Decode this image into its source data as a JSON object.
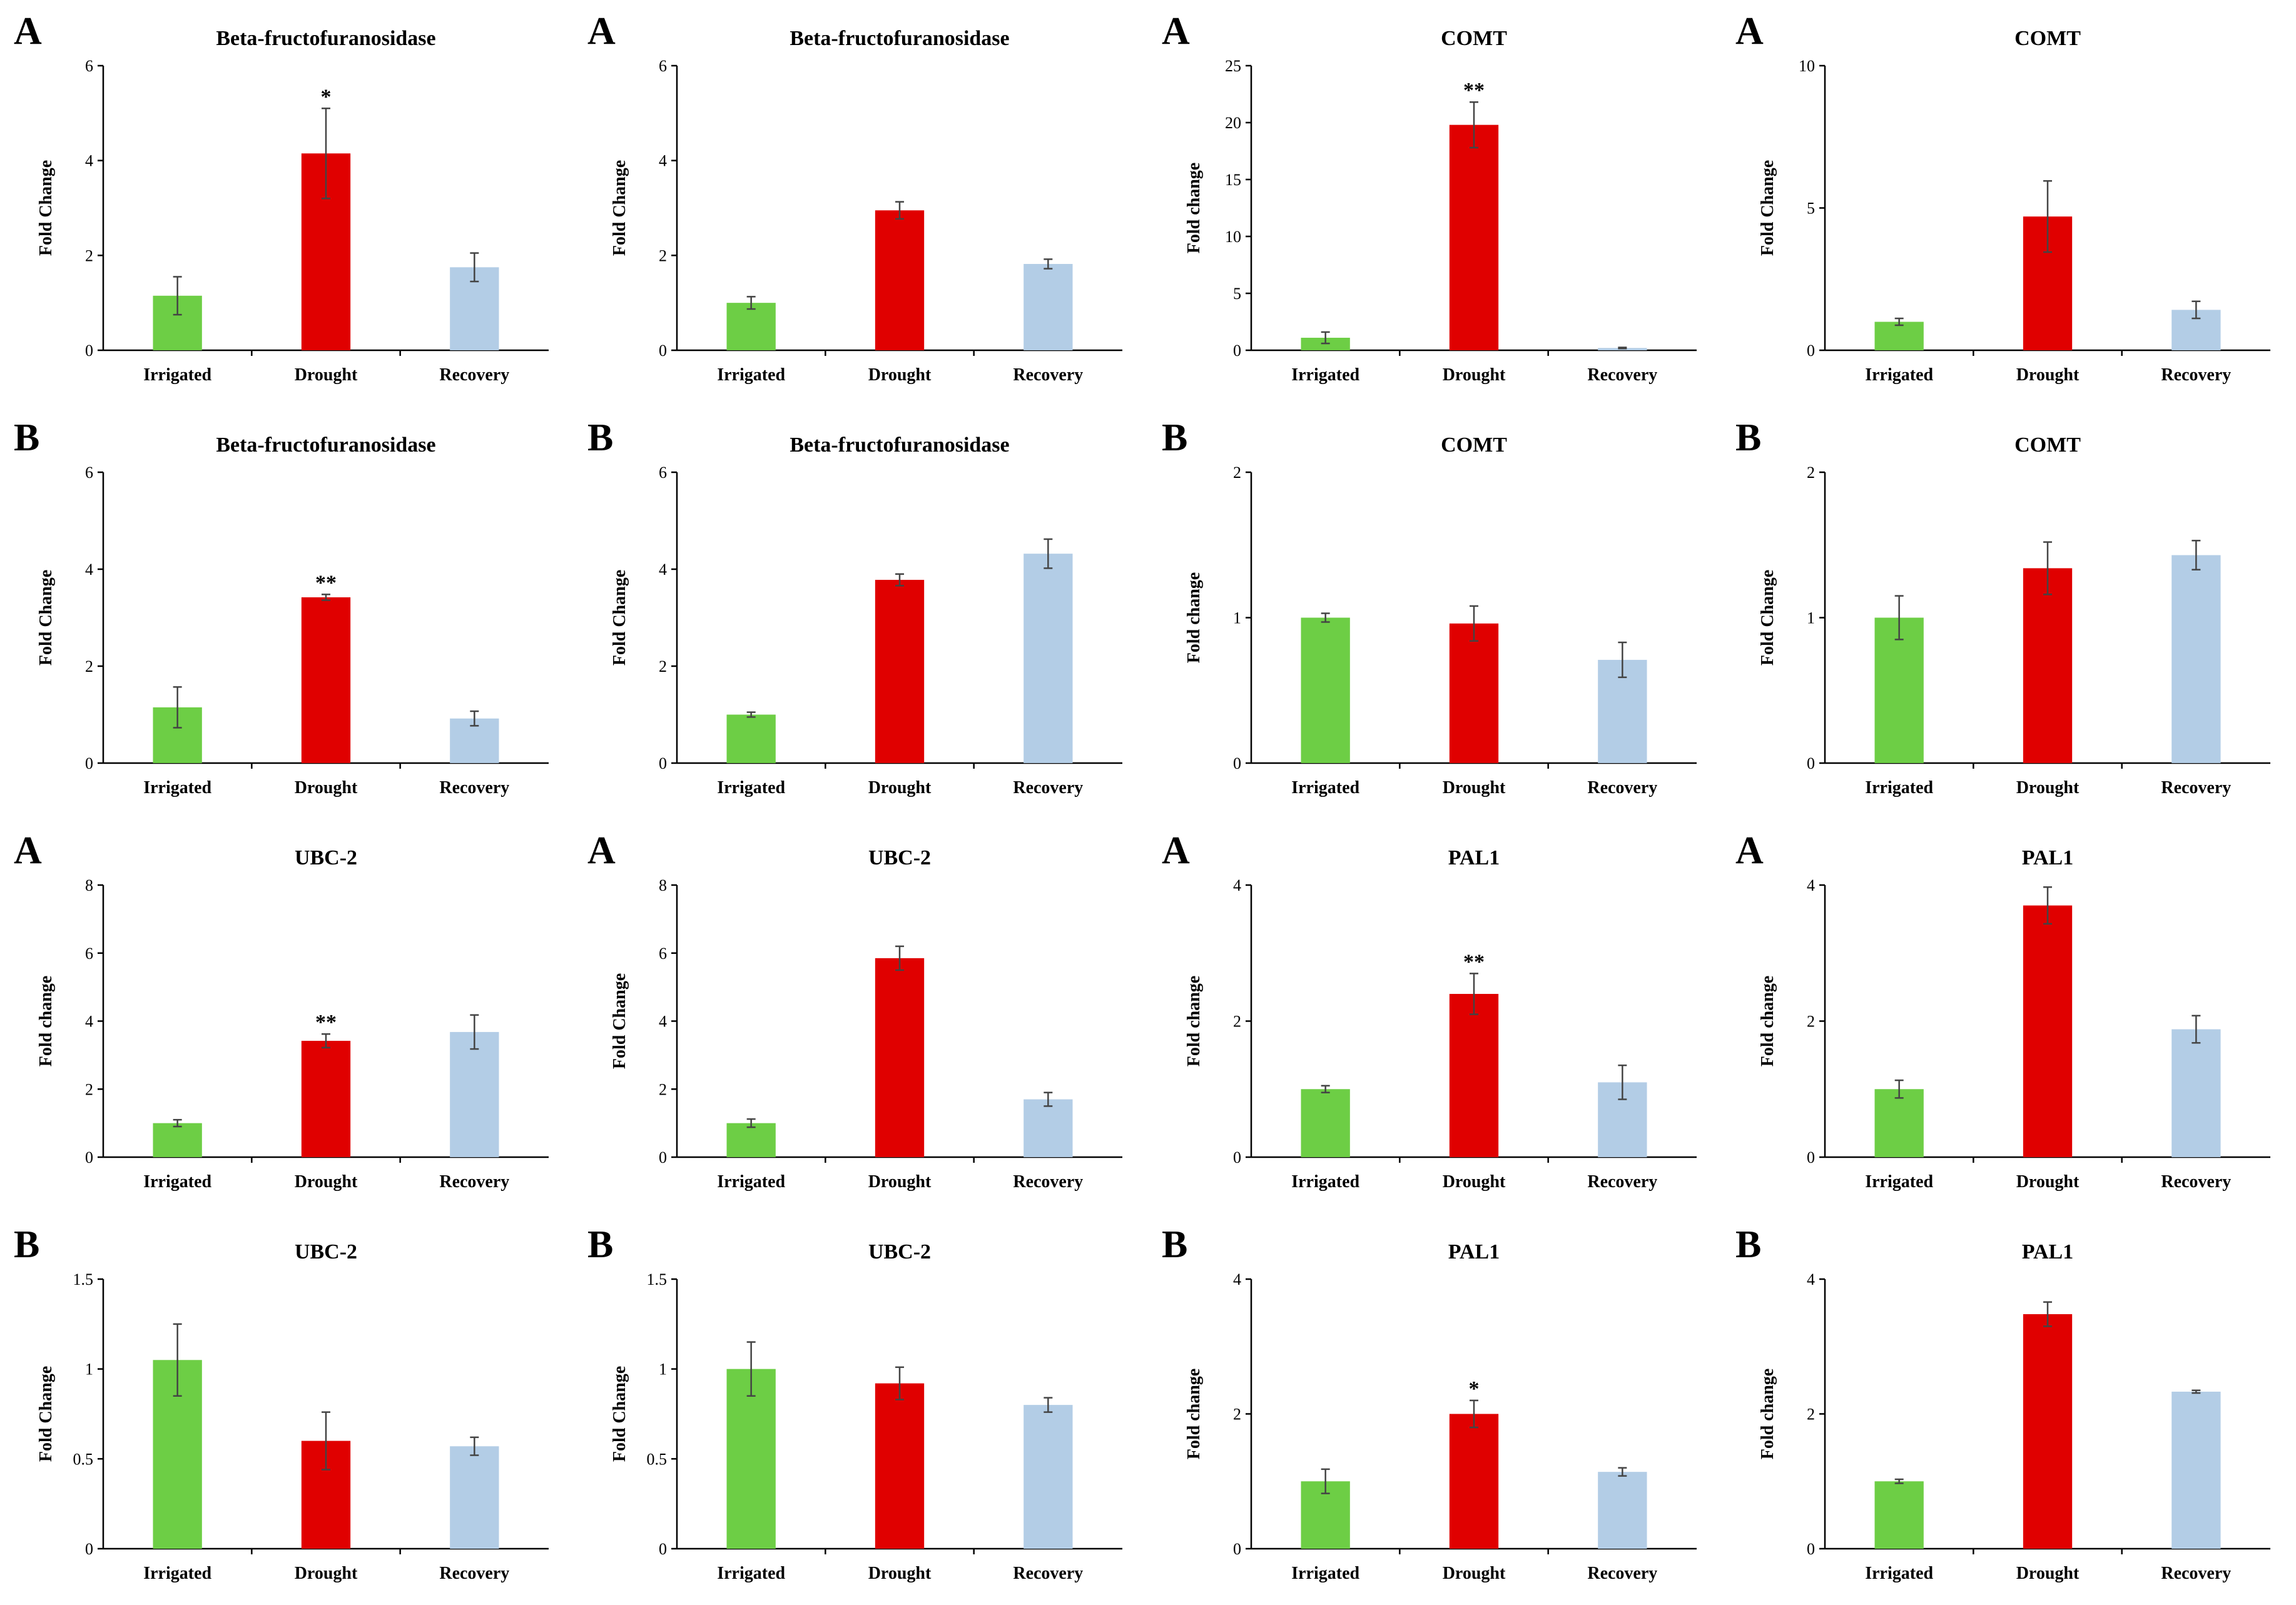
{
  "colors": {
    "Irrigated": "#6dce45",
    "Drought": "#e00000",
    "Recovery": "#b3cde6"
  },
  "chart_data": [
    {
      "type": "bar",
      "letter": "A",
      "title": "Beta-fructofuranosidase",
      "ylabel": "Fold Change",
      "ylim": [
        0,
        6
      ],
      "ticks": [
        0,
        2,
        4,
        6
      ],
      "categories": [
        "Irrigated",
        "Drought",
        "Recovery"
      ],
      "values": [
        1.15,
        4.15,
        1.75
      ],
      "errors": [
        0.4,
        0.95,
        0.3
      ],
      "significance": [
        "",
        "*",
        ""
      ]
    },
    {
      "type": "bar",
      "letter": "A",
      "title": "Beta-fructofuranosidase",
      "ylabel": "Fold Change",
      "ylim": [
        0,
        6
      ],
      "ticks": [
        0,
        2,
        4,
        6
      ],
      "categories": [
        "Irrigated",
        "Drought",
        "Recovery"
      ],
      "values": [
        1.0,
        2.95,
        1.82
      ],
      "errors": [
        0.13,
        0.18,
        0.1
      ],
      "significance": [
        "",
        "",
        ""
      ]
    },
    {
      "type": "bar",
      "letter": "A",
      "title": "COMT",
      "ylabel": "Fold change",
      "ylim": [
        0,
        25
      ],
      "ticks": [
        0,
        5,
        10,
        15,
        20,
        25
      ],
      "categories": [
        "Irrigated",
        "Drought",
        "Recovery"
      ],
      "values": [
        1.1,
        19.8,
        0.2
      ],
      "errors": [
        0.5,
        2.0,
        0.05
      ],
      "significance": [
        "",
        "**",
        ""
      ]
    },
    {
      "type": "bar",
      "letter": "A",
      "title": "COMT",
      "ylabel": "Fold Change",
      "ylim": [
        0,
        10
      ],
      "ticks": [
        0,
        5,
        10
      ],
      "categories": [
        "Irrigated",
        "Drought",
        "Recovery"
      ],
      "values": [
        1.0,
        4.7,
        1.42
      ],
      "errors": [
        0.12,
        1.25,
        0.3
      ],
      "significance": [
        "",
        "",
        ""
      ]
    },
    {
      "type": "bar",
      "letter": "B",
      "title": "Beta-fructofuranosidase",
      "ylabel": "Fold Change",
      "ylim": [
        0,
        6
      ],
      "ticks": [
        0,
        2,
        4,
        6
      ],
      "categories": [
        "Irrigated",
        "Drought",
        "Recovery"
      ],
      "values": [
        1.15,
        3.42,
        0.92
      ],
      "errors": [
        0.42,
        0.06,
        0.15
      ],
      "significance": [
        "",
        "**",
        ""
      ]
    },
    {
      "type": "bar",
      "letter": "B",
      "title": "Beta-fructofuranosidase",
      "ylabel": "Fold Change",
      "ylim": [
        0,
        6
      ],
      "ticks": [
        0,
        2,
        4,
        6
      ],
      "categories": [
        "Irrigated",
        "Drought",
        "Recovery"
      ],
      "values": [
        1.0,
        3.78,
        4.32
      ],
      "errors": [
        0.05,
        0.12,
        0.3
      ],
      "significance": [
        "",
        "",
        ""
      ]
    },
    {
      "type": "bar",
      "letter": "B",
      "title": "COMT",
      "ylabel": "Fold change",
      "ylim": [
        0,
        2
      ],
      "ticks": [
        0,
        1,
        2
      ],
      "categories": [
        "Irrigated",
        "Drought",
        "Recovery"
      ],
      "values": [
        1.0,
        0.96,
        0.71
      ],
      "errors": [
        0.03,
        0.12,
        0.12
      ],
      "significance": [
        "",
        "",
        ""
      ]
    },
    {
      "type": "bar",
      "letter": "B",
      "title": "COMT",
      "ylabel": "Fold Change",
      "ylim": [
        0,
        2
      ],
      "ticks": [
        0,
        1,
        2
      ],
      "categories": [
        "Irrigated",
        "Drought",
        "Recovery"
      ],
      "values": [
        1.0,
        1.34,
        1.43
      ],
      "errors": [
        0.15,
        0.18,
        0.1
      ],
      "significance": [
        "",
        "",
        ""
      ]
    },
    {
      "type": "bar",
      "letter": "A",
      "title": "UBC-2",
      "ylabel": "Fold change",
      "ylim": [
        0,
        8
      ],
      "ticks": [
        0,
        2,
        4,
        6,
        8
      ],
      "categories": [
        "Irrigated",
        "Drought",
        "Recovery"
      ],
      "values": [
        1.0,
        3.42,
        3.68
      ],
      "errors": [
        0.1,
        0.2,
        0.5
      ],
      "significance": [
        "",
        "**",
        ""
      ]
    },
    {
      "type": "bar",
      "letter": "A",
      "title": "UBC-2",
      "ylabel": "Fold Change",
      "ylim": [
        0,
        8
      ],
      "ticks": [
        0,
        2,
        4,
        6,
        8
      ],
      "categories": [
        "Irrigated",
        "Drought",
        "Recovery"
      ],
      "values": [
        1.0,
        5.85,
        1.7
      ],
      "errors": [
        0.12,
        0.35,
        0.2
      ],
      "significance": [
        "",
        "",
        ""
      ]
    },
    {
      "type": "bar",
      "letter": "A",
      "title": "PAL1",
      "ylabel": "Fold change",
      "ylim": [
        0,
        4
      ],
      "ticks": [
        0,
        2,
        4
      ],
      "categories": [
        "Irrigated",
        "Drought",
        "Recovery"
      ],
      "values": [
        1.0,
        2.4,
        1.1
      ],
      "errors": [
        0.05,
        0.3,
        0.25
      ],
      "significance": [
        "",
        "**",
        ""
      ]
    },
    {
      "type": "bar",
      "letter": "A",
      "title": "PAL1",
      "ylabel": "Fold change",
      "ylim": [
        0,
        4
      ],
      "ticks": [
        0,
        2,
        4
      ],
      "categories": [
        "Irrigated",
        "Drought",
        "Recovery"
      ],
      "values": [
        1.0,
        3.7,
        1.88
      ],
      "errors": [
        0.13,
        0.27,
        0.2
      ],
      "significance": [
        "",
        "",
        ""
      ]
    },
    {
      "type": "bar",
      "letter": "B",
      "title": "UBC-2",
      "ylabel": "Fold Change",
      "ylim": [
        0,
        1.5
      ],
      "ticks": [
        0,
        0.5,
        1,
        1.5
      ],
      "categories": [
        "Irrigated",
        "Drought",
        "Recovery"
      ],
      "values": [
        1.05,
        0.6,
        0.57
      ],
      "errors": [
        0.2,
        0.16,
        0.05
      ],
      "significance": [
        "",
        "",
        ""
      ]
    },
    {
      "type": "bar",
      "letter": "B",
      "title": "UBC-2",
      "ylabel": "Fold Change",
      "ylim": [
        0,
        1.5
      ],
      "ticks": [
        0,
        0.5,
        1,
        1.5
      ],
      "categories": [
        "Irrigated",
        "Drought",
        "Recovery"
      ],
      "values": [
        1.0,
        0.92,
        0.8
      ],
      "errors": [
        0.15,
        0.09,
        0.04
      ],
      "significance": [
        "",
        "",
        ""
      ]
    },
    {
      "type": "bar",
      "letter": "B",
      "title": "PAL1",
      "ylabel": "Fold change",
      "ylim": [
        0,
        4
      ],
      "ticks": [
        0,
        2,
        4
      ],
      "categories": [
        "Irrigated",
        "Drought",
        "Recovery"
      ],
      "values": [
        1.0,
        2.0,
        1.14
      ],
      "errors": [
        0.18,
        0.2,
        0.06
      ],
      "significance": [
        "",
        "*",
        ""
      ]
    },
    {
      "type": "bar",
      "letter": "B",
      "title": "PAL1",
      "ylabel": "Fold change",
      "ylim": [
        0,
        4
      ],
      "ticks": [
        0,
        2,
        4
      ],
      "categories": [
        "Irrigated",
        "Drought",
        "Recovery"
      ],
      "values": [
        1.0,
        3.48,
        2.33
      ],
      "errors": [
        0.03,
        0.18,
        0.02
      ],
      "significance": [
        "",
        "",
        ""
      ]
    }
  ]
}
